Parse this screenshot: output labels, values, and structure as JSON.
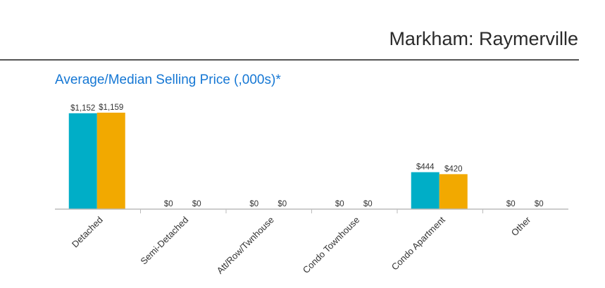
{
  "header": {
    "title": "Markham: Raymerville"
  },
  "chart_data": {
    "type": "bar",
    "title": "Average/Median Selling Price (,000s)*",
    "categories": [
      "Detached",
      "Semi-Detached",
      "Att/Row/Twnhouse",
      "Condo Townhouse",
      "Condo Apartment",
      "Other"
    ],
    "series": [
      {
        "name": "Average",
        "color": "#00aec7",
        "values": [
          1152,
          0,
          0,
          0,
          444,
          0
        ],
        "labels": [
          "$1,152",
          "$0",
          "$0",
          "$0",
          "$444",
          "$0"
        ]
      },
      {
        "name": "Median",
        "color": "#f2a900",
        "values": [
          1159,
          0,
          0,
          0,
          420,
          0
        ],
        "labels": [
          "$1,159",
          "$0",
          "$0",
          "$0",
          "$420",
          "$0"
        ]
      }
    ],
    "ylim": [
      0,
      1159
    ],
    "grid": false,
    "legend": "none"
  }
}
